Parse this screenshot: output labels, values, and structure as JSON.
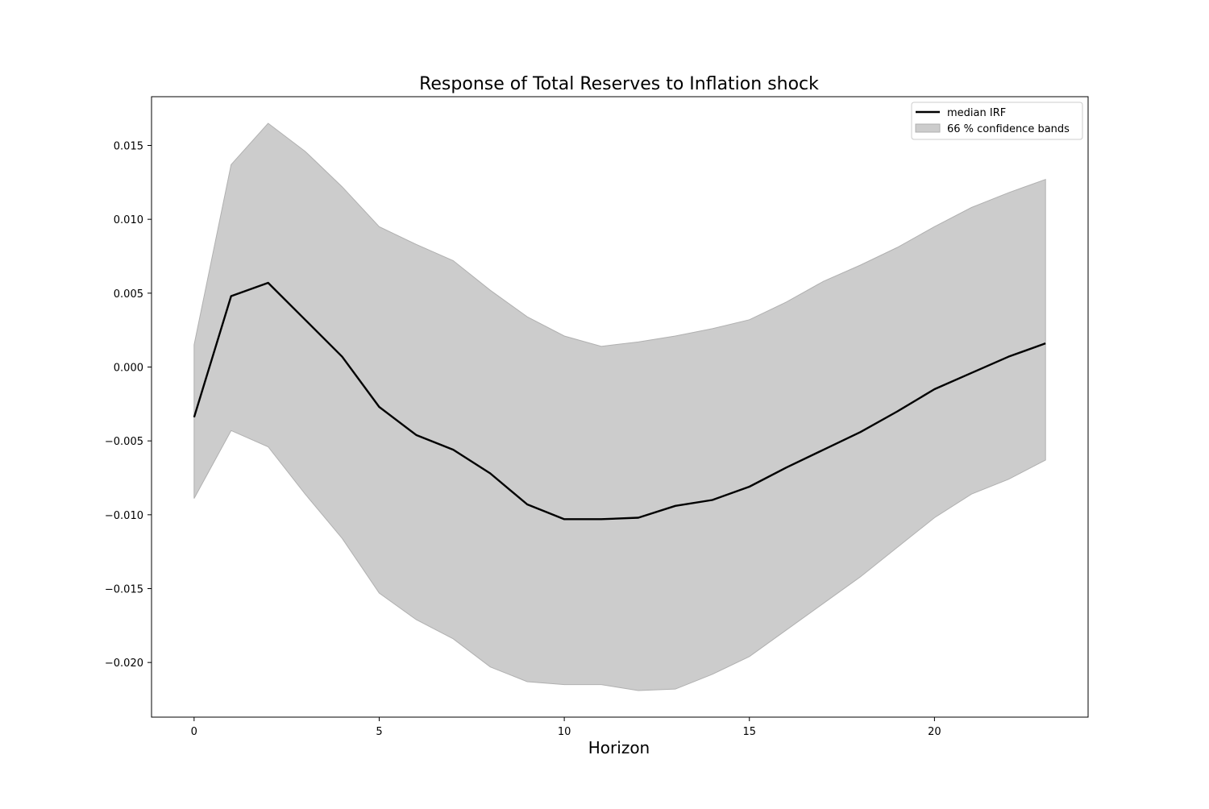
{
  "chart_data": {
    "type": "area",
    "title": "Response of Total Reserves to Inflation shock",
    "xlabel": "Horizon",
    "ylabel": "",
    "xlim": [
      -1.15,
      24.15
    ],
    "ylim": [
      -0.0237,
      0.0183
    ],
    "xticks": [
      0,
      5,
      10,
      15,
      20
    ],
    "xtick_labels": [
      "0",
      "5",
      "10",
      "15",
      "20"
    ],
    "yticks": [
      -0.02,
      -0.015,
      -0.01,
      -0.005,
      0.0,
      0.005,
      0.01,
      0.015
    ],
    "ytick_labels": [
      "−0.020",
      "−0.015",
      "−0.010",
      "−0.005",
      "0.000",
      "0.005",
      "0.010",
      "0.015"
    ],
    "grid": false,
    "legend_position": "top-right",
    "x": [
      0,
      1,
      2,
      3,
      4,
      5,
      6,
      7,
      8,
      9,
      10,
      11,
      12,
      13,
      14,
      15,
      16,
      17,
      18,
      19,
      20,
      21,
      22,
      23
    ],
    "series": [
      {
        "name": "median IRF",
        "kind": "line",
        "color": "#000000",
        "values": [
          -0.0034,
          0.0048,
          0.0057,
          0.0032,
          0.0007,
          -0.0027,
          -0.0046,
          -0.0056,
          -0.0072,
          -0.0093,
          -0.0103,
          -0.0103,
          -0.0102,
          -0.0094,
          -0.009,
          -0.0081,
          -0.0068,
          -0.0056,
          -0.0044,
          -0.003,
          -0.0015,
          -0.0004,
          0.0007,
          0.0016
        ]
      },
      {
        "name": "66 % confidence bands",
        "kind": "band",
        "color": "#cccccc",
        "edge_color": "#b0b0b0",
        "upper": [
          0.0015,
          0.0137,
          0.0165,
          0.0146,
          0.0122,
          0.0095,
          0.0083,
          0.0072,
          0.0052,
          0.0034,
          0.0021,
          0.0014,
          0.0017,
          0.0021,
          0.0026,
          0.0032,
          0.0044,
          0.0058,
          0.0069,
          0.0081,
          0.0095,
          0.0108,
          0.0118,
          0.0127
        ],
        "lower": [
          -0.0089,
          -0.0043,
          -0.0054,
          -0.0086,
          -0.0116,
          -0.0153,
          -0.0171,
          -0.0184,
          -0.0203,
          -0.0213,
          -0.0215,
          -0.0215,
          -0.0219,
          -0.0218,
          -0.0208,
          -0.0196,
          -0.0178,
          -0.016,
          -0.0142,
          -0.0122,
          -0.0102,
          -0.0086,
          -0.0076,
          -0.0063
        ]
      }
    ]
  }
}
